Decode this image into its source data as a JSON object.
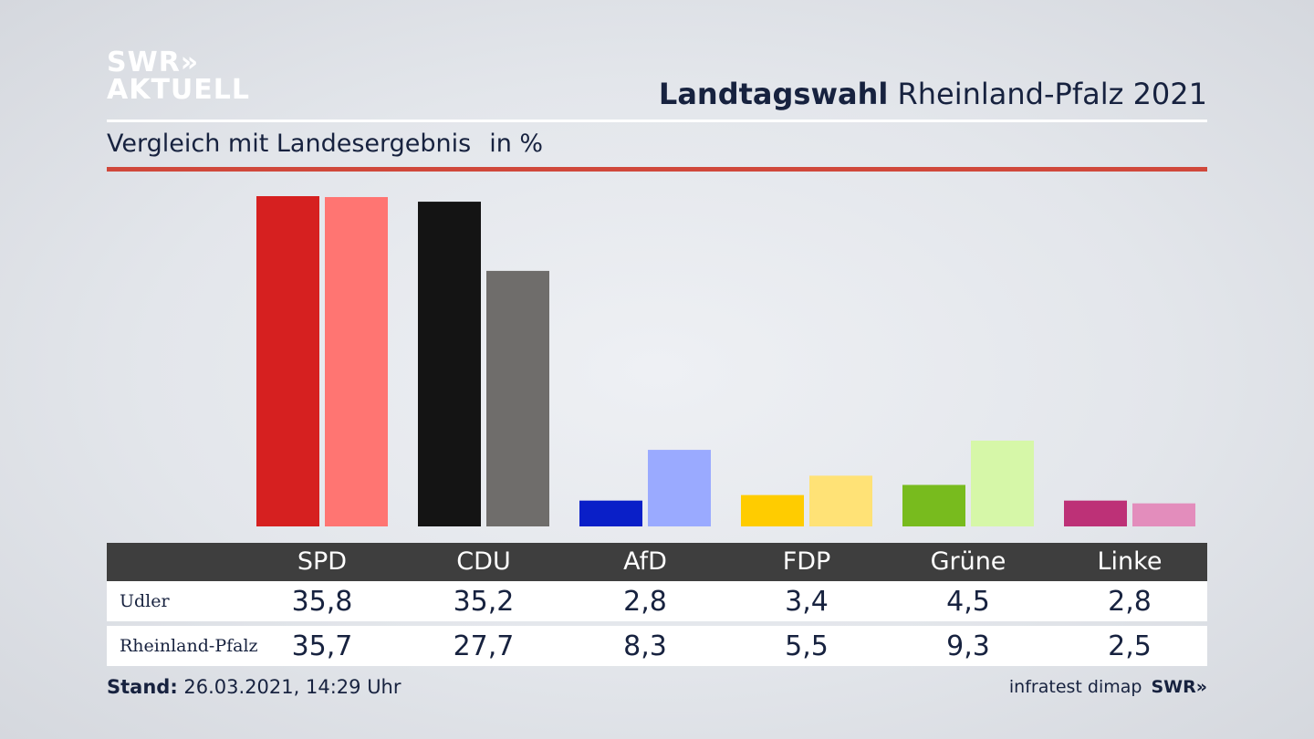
{
  "logo": {
    "line1": "SWR»",
    "line2": "AKTUELL"
  },
  "header": {
    "title_bold": "Landtagswahl",
    "title_rest": "Rheinland-Pfalz 2021"
  },
  "subtitle": {
    "text": "Vergleich mit Landesergebnis",
    "unit": "in %"
  },
  "table": {
    "row_labels": [
      "Udler",
      "Rheinland-Pfalz"
    ]
  },
  "footer": {
    "stand_label": "Stand:",
    "stand_value": "26.03.2021, 14:29 Uhr",
    "source": "infratest dimap",
    "brand": "SWR»"
  },
  "chart_data": {
    "type": "bar",
    "categories": [
      "SPD",
      "CDU",
      "AfD",
      "FDP",
      "Grüne",
      "Linke"
    ],
    "series": [
      {
        "name": "Udler",
        "values": [
          35.8,
          35.2,
          2.8,
          3.4,
          4.5,
          2.8
        ],
        "colors": [
          "#d62020",
          "#141414",
          "#0a1fc8",
          "#ffcc00",
          "#78bb1e",
          "#bd3177"
        ]
      },
      {
        "name": "Rheinland-Pfalz",
        "values": [
          35.7,
          27.7,
          8.3,
          5.5,
          9.3,
          2.5
        ],
        "colors": [
          "#ff7572",
          "#6f6d6b",
          "#9aaaff",
          "#ffe276",
          "#d6f7a8",
          "#e38dbc"
        ]
      }
    ],
    "value_labels": [
      [
        "35,8",
        "35,2",
        "2,8",
        "3,4",
        "4,5",
        "2,8"
      ],
      [
        "35,7",
        "27,7",
        "8,3",
        "5,5",
        "9,3",
        "2,5"
      ]
    ],
    "ylim": [
      0,
      36
    ]
  }
}
